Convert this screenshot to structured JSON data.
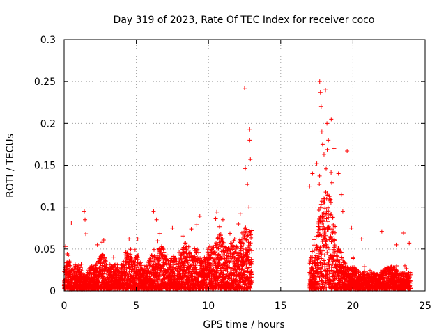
{
  "chart_data": {
    "type": "scatter",
    "title": "Day 319 of 2023, Rate Of TEC Index for receiver coco",
    "xlabel": "GPS time / hours",
    "ylabel": "ROTI / TECUs",
    "xlim": [
      0,
      25
    ],
    "ylim": [
      0,
      0.3
    ],
    "xticks": [
      0,
      5,
      10,
      15,
      20,
      25
    ],
    "xtick_labels": [
      "0",
      "5",
      "10",
      "15",
      "20",
      "25"
    ],
    "yticks": [
      0,
      0.05,
      0.1,
      0.15,
      0.2,
      0.25,
      0.3
    ],
    "ytick_labels": [
      "0",
      "0.05",
      "0.1",
      "0.15",
      "0.2",
      "0.25",
      "0.3"
    ],
    "grid": true,
    "marker": "plus",
    "color": "#ff0000",
    "data_segments": [
      {
        "x_start": 0.0,
        "x_end": 13.0
      },
      {
        "x_start": 17.0,
        "x_end": 24.0
      }
    ],
    "highlight_points": [
      {
        "x": 0.1,
        "y": 0.053
      },
      {
        "x": 0.5,
        "y": 0.081
      },
      {
        "x": 1.4,
        "y": 0.095
      },
      {
        "x": 1.45,
        "y": 0.085
      },
      {
        "x": 1.5,
        "y": 0.068
      },
      {
        "x": 2.3,
        "y": 0.055
      },
      {
        "x": 4.5,
        "y": 0.062
      },
      {
        "x": 5.1,
        "y": 0.062
      },
      {
        "x": 6.2,
        "y": 0.095
      },
      {
        "x": 6.4,
        "y": 0.085
      },
      {
        "x": 7.5,
        "y": 0.075
      },
      {
        "x": 9.4,
        "y": 0.089
      },
      {
        "x": 10.5,
        "y": 0.086
      },
      {
        "x": 11.0,
        "y": 0.085
      },
      {
        "x": 12.2,
        "y": 0.092
      },
      {
        "x": 12.5,
        "y": 0.242
      },
      {
        "x": 12.55,
        "y": 0.146
      },
      {
        "x": 12.7,
        "y": 0.127
      },
      {
        "x": 12.85,
        "y": 0.193
      },
      {
        "x": 12.85,
        "y": 0.18
      },
      {
        "x": 12.9,
        "y": 0.157
      },
      {
        "x": 12.8,
        "y": 0.1
      },
      {
        "x": 17.0,
        "y": 0.125
      },
      {
        "x": 17.2,
        "y": 0.14
      },
      {
        "x": 17.5,
        "y": 0.152
      },
      {
        "x": 17.7,
        "y": 0.25
      },
      {
        "x": 17.75,
        "y": 0.237
      },
      {
        "x": 17.8,
        "y": 0.22
      },
      {
        "x": 17.85,
        "y": 0.19
      },
      {
        "x": 17.9,
        "y": 0.175
      },
      {
        "x": 18.0,
        "y": 0.163
      },
      {
        "x": 18.1,
        "y": 0.24
      },
      {
        "x": 18.2,
        "y": 0.2
      },
      {
        "x": 18.3,
        "y": 0.18
      },
      {
        "x": 18.5,
        "y": 0.205
      },
      {
        "x": 18.7,
        "y": 0.17
      },
      {
        "x": 19.0,
        "y": 0.14
      },
      {
        "x": 19.2,
        "y": 0.115
      },
      {
        "x": 19.3,
        "y": 0.095
      },
      {
        "x": 19.6,
        "y": 0.167
      },
      {
        "x": 19.9,
        "y": 0.075
      },
      {
        "x": 20.6,
        "y": 0.062
      },
      {
        "x": 22.0,
        "y": 0.071
      },
      {
        "x": 23.0,
        "y": 0.055
      },
      {
        "x": 23.5,
        "y": 0.069
      },
      {
        "x": 23.9,
        "y": 0.057
      }
    ]
  }
}
